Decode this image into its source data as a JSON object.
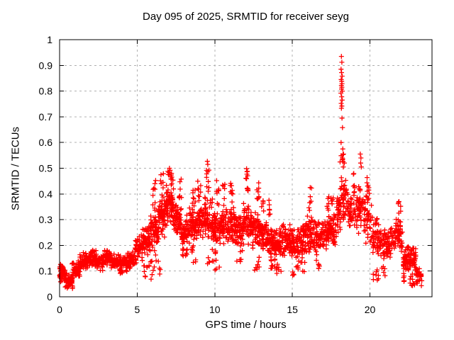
{
  "chart_data": {
    "type": "scatter",
    "title": "Day 095 of 2025, SRMTID for receiver seyg",
    "xlabel": "GPS time / hours",
    "ylabel": "SRMTID / TECUs",
    "xlim": [
      0,
      24
    ],
    "ylim": [
      0,
      1
    ],
    "xticks": [
      0,
      5,
      10,
      15,
      20
    ],
    "xtick_labels": [
      "0",
      "5",
      "10",
      "15",
      "20"
    ],
    "yticks": [
      0,
      0.1,
      0.2,
      0.3,
      0.4,
      0.5,
      0.6,
      0.7,
      0.8,
      0.9,
      1
    ],
    "ytick_labels": [
      "0",
      "0.1",
      "0.2",
      "0.3",
      "0.4",
      "0.5",
      "0.6",
      "0.7",
      "0.8",
      "0.9",
      "1"
    ],
    "grid": true,
    "legend": false,
    "marker": "plus",
    "marker_color": "#ff0000",
    "grid_color": "#b0b0b0",
    "axis_color": "#000000",
    "background": "#ffffff",
    "series_name": "SRMTID",
    "bin_format": [
      "x_start_hours",
      "x_end_hours",
      "y_min_tecus",
      "y_max_tecus",
      "point_count",
      "spread_mode(0=center-weighted,1=uniform)"
    ],
    "density_bins": [
      [
        0.0,
        0.35,
        0.05,
        0.13,
        35,
        0
      ],
      [
        0.02,
        0.12,
        0.085,
        0.125,
        8,
        1
      ],
      [
        0.3,
        0.85,
        0.03,
        0.095,
        70,
        0
      ],
      [
        0.8,
        1.35,
        0.06,
        0.15,
        55,
        0
      ],
      [
        1.3,
        1.85,
        0.1,
        0.175,
        55,
        0
      ],
      [
        1.8,
        2.35,
        0.115,
        0.19,
        55,
        0
      ],
      [
        2.3,
        2.85,
        0.1,
        0.17,
        50,
        0
      ],
      [
        2.8,
        3.35,
        0.12,
        0.185,
        50,
        0
      ],
      [
        3.3,
        3.85,
        0.105,
        0.17,
        45,
        0
      ],
      [
        3.85,
        4.35,
        0.09,
        0.165,
        50,
        0
      ],
      [
        4.35,
        4.85,
        0.1,
        0.18,
        45,
        0
      ],
      [
        4.85,
        5.35,
        0.13,
        0.245,
        55,
        0
      ],
      [
        5.35,
        5.85,
        0.15,
        0.28,
        50,
        0
      ],
      [
        5.4,
        5.9,
        0.055,
        0.14,
        12,
        1
      ],
      [
        5.85,
        6.35,
        0.17,
        0.33,
        55,
        0
      ],
      [
        6.0,
        6.2,
        0.33,
        0.46,
        10,
        1
      ],
      [
        5.9,
        6.5,
        0.08,
        0.165,
        10,
        1
      ],
      [
        6.35,
        6.85,
        0.21,
        0.42,
        65,
        0
      ],
      [
        6.5,
        6.7,
        0.42,
        0.48,
        6,
        1
      ],
      [
        6.85,
        7.35,
        0.26,
        0.47,
        75,
        0
      ],
      [
        7.0,
        7.25,
        0.43,
        0.5,
        10,
        1
      ],
      [
        7.35,
        7.85,
        0.23,
        0.38,
        55,
        0
      ],
      [
        7.7,
        7.85,
        0.38,
        0.46,
        7,
        1
      ],
      [
        7.85,
        8.35,
        0.19,
        0.32,
        55,
        0
      ],
      [
        7.9,
        8.3,
        0.15,
        0.19,
        10,
        1
      ],
      [
        8.35,
        8.85,
        0.2,
        0.35,
        55,
        0
      ],
      [
        8.55,
        8.75,
        0.35,
        0.45,
        8,
        1
      ],
      [
        8.5,
        8.8,
        0.13,
        0.2,
        8,
        1
      ],
      [
        8.85,
        9.35,
        0.21,
        0.37,
        55,
        0
      ],
      [
        8.9,
        9.1,
        0.37,
        0.47,
        8,
        1
      ],
      [
        9.35,
        9.85,
        0.22,
        0.4,
        55,
        0
      ],
      [
        9.45,
        9.65,
        0.4,
        0.51,
        10,
        1
      ],
      [
        9.5,
        9.9,
        0.12,
        0.2,
        6,
        1
      ],
      [
        9.85,
        10.35,
        0.2,
        0.35,
        55,
        0
      ],
      [
        10.1,
        10.3,
        0.35,
        0.465,
        8,
        1
      ],
      [
        9.9,
        10.3,
        0.1,
        0.18,
        8,
        1
      ],
      [
        10.35,
        10.85,
        0.2,
        0.35,
        55,
        0
      ],
      [
        10.5,
        10.65,
        0.35,
        0.44,
        6,
        1
      ],
      [
        10.85,
        11.35,
        0.2,
        0.36,
        55,
        0
      ],
      [
        11.0,
        11.2,
        0.36,
        0.46,
        8,
        1
      ],
      [
        11.35,
        11.85,
        0.18,
        0.33,
        55,
        0
      ],
      [
        11.4,
        11.8,
        0.12,
        0.18,
        6,
        1
      ],
      [
        11.85,
        12.35,
        0.19,
        0.38,
        55,
        0
      ],
      [
        12.0,
        12.15,
        0.38,
        0.495,
        10,
        1
      ],
      [
        12.35,
        12.85,
        0.18,
        0.35,
        55,
        0
      ],
      [
        12.7,
        12.85,
        0.35,
        0.45,
        8,
        1
      ],
      [
        12.5,
        12.9,
        0.1,
        0.17,
        8,
        1
      ],
      [
        12.85,
        13.35,
        0.17,
        0.33,
        55,
        0
      ],
      [
        13.0,
        13.15,
        0.33,
        0.42,
        6,
        1
      ],
      [
        13.35,
        13.85,
        0.15,
        0.29,
        55,
        0
      ],
      [
        13.45,
        13.6,
        0.29,
        0.405,
        6,
        1
      ],
      [
        13.5,
        13.9,
        0.1,
        0.15,
        8,
        1
      ],
      [
        13.85,
        14.35,
        0.14,
        0.27,
        55,
        0
      ],
      [
        13.9,
        14.3,
        0.09,
        0.14,
        8,
        1
      ],
      [
        14.35,
        14.85,
        0.15,
        0.3,
        50,
        0
      ],
      [
        14.85,
        15.35,
        0.13,
        0.27,
        50,
        0
      ],
      [
        15.0,
        15.4,
        0.08,
        0.13,
        8,
        1
      ],
      [
        15.35,
        15.85,
        0.14,
        0.32,
        50,
        0
      ],
      [
        15.4,
        15.8,
        0.09,
        0.14,
        6,
        1
      ],
      [
        15.85,
        16.35,
        0.16,
        0.32,
        50,
        0
      ],
      [
        16.05,
        16.25,
        0.32,
        0.43,
        8,
        1
      ],
      [
        16.35,
        16.85,
        0.15,
        0.3,
        50,
        0
      ],
      [
        16.4,
        16.8,
        0.11,
        0.15,
        6,
        1
      ],
      [
        16.85,
        17.35,
        0.16,
        0.32,
        50,
        0
      ],
      [
        17.2,
        17.35,
        0.32,
        0.395,
        6,
        1
      ],
      [
        17.35,
        17.85,
        0.18,
        0.35,
        50,
        0
      ],
      [
        17.5,
        17.65,
        0.35,
        0.44,
        6,
        1
      ],
      [
        17.85,
        18.1,
        0.22,
        0.4,
        30,
        0
      ],
      [
        18.05,
        18.3,
        0.48,
        0.58,
        6,
        1
      ],
      [
        18.1,
        18.6,
        0.28,
        0.48,
        45,
        0
      ],
      [
        18.6,
        19.1,
        0.26,
        0.42,
        40,
        0
      ],
      [
        18.9,
        19.05,
        0.42,
        0.49,
        5,
        1
      ],
      [
        19.1,
        19.6,
        0.24,
        0.44,
        45,
        0
      ],
      [
        19.6,
        20.1,
        0.2,
        0.4,
        45,
        0
      ],
      [
        19.8,
        20.0,
        0.4,
        0.47,
        8,
        1
      ],
      [
        20.1,
        20.6,
        0.15,
        0.32,
        45,
        0
      ],
      [
        20.2,
        20.6,
        0.06,
        0.12,
        8,
        1
      ],
      [
        20.6,
        21.1,
        0.13,
        0.28,
        45,
        0
      ],
      [
        20.7,
        21.0,
        0.08,
        0.12,
        5,
        1
      ],
      [
        21.1,
        21.6,
        0.14,
        0.28,
        45,
        0
      ],
      [
        21.6,
        22.1,
        0.16,
        0.32,
        50,
        0
      ],
      [
        21.8,
        22.0,
        0.32,
        0.375,
        6,
        1
      ],
      [
        22.1,
        22.45,
        0.08,
        0.2,
        35,
        0
      ],
      [
        22.15,
        22.25,
        0.03,
        0.14,
        10,
        1
      ],
      [
        22.45,
        22.95,
        0.09,
        0.21,
        55,
        0
      ],
      [
        22.5,
        22.9,
        0.04,
        0.09,
        10,
        1
      ],
      [
        22.95,
        23.35,
        0.04,
        0.13,
        30,
        0
      ]
    ],
    "extreme_points": [
      [
        18.16,
        0.935
      ],
      [
        18.19,
        0.912
      ],
      [
        18.14,
        0.885
      ],
      [
        18.17,
        0.872
      ],
      [
        18.21,
        0.858
      ],
      [
        18.15,
        0.845
      ],
      [
        18.18,
        0.838
      ],
      [
        18.2,
        0.829
      ],
      [
        18.16,
        0.822
      ],
      [
        18.19,
        0.815
      ],
      [
        18.17,
        0.808
      ],
      [
        18.22,
        0.8
      ],
      [
        18.13,
        0.792
      ],
      [
        18.18,
        0.778
      ],
      [
        18.21,
        0.765
      ],
      [
        18.15,
        0.752
      ],
      [
        18.19,
        0.742
      ],
      [
        18.16,
        0.733
      ],
      [
        18.2,
        0.695
      ],
      [
        18.23,
        0.658
      ],
      [
        18.14,
        0.6
      ],
      [
        18.25,
        0.575
      ],
      [
        18.3,
        0.555
      ],
      [
        18.22,
        0.54
      ],
      [
        18.35,
        0.52
      ],
      [
        18.28,
        0.505
      ],
      [
        19.38,
        0.555
      ],
      [
        19.42,
        0.54
      ],
      [
        19.4,
        0.52
      ],
      [
        19.44,
        0.505
      ],
      [
        9.52,
        0.527
      ],
      [
        9.55,
        0.515
      ],
      [
        12.05,
        0.498
      ],
      [
        12.1,
        0.488
      ],
      [
        7.08,
        0.5
      ],
      [
        7.12,
        0.492
      ],
      [
        6.98,
        0.488
      ]
    ]
  }
}
